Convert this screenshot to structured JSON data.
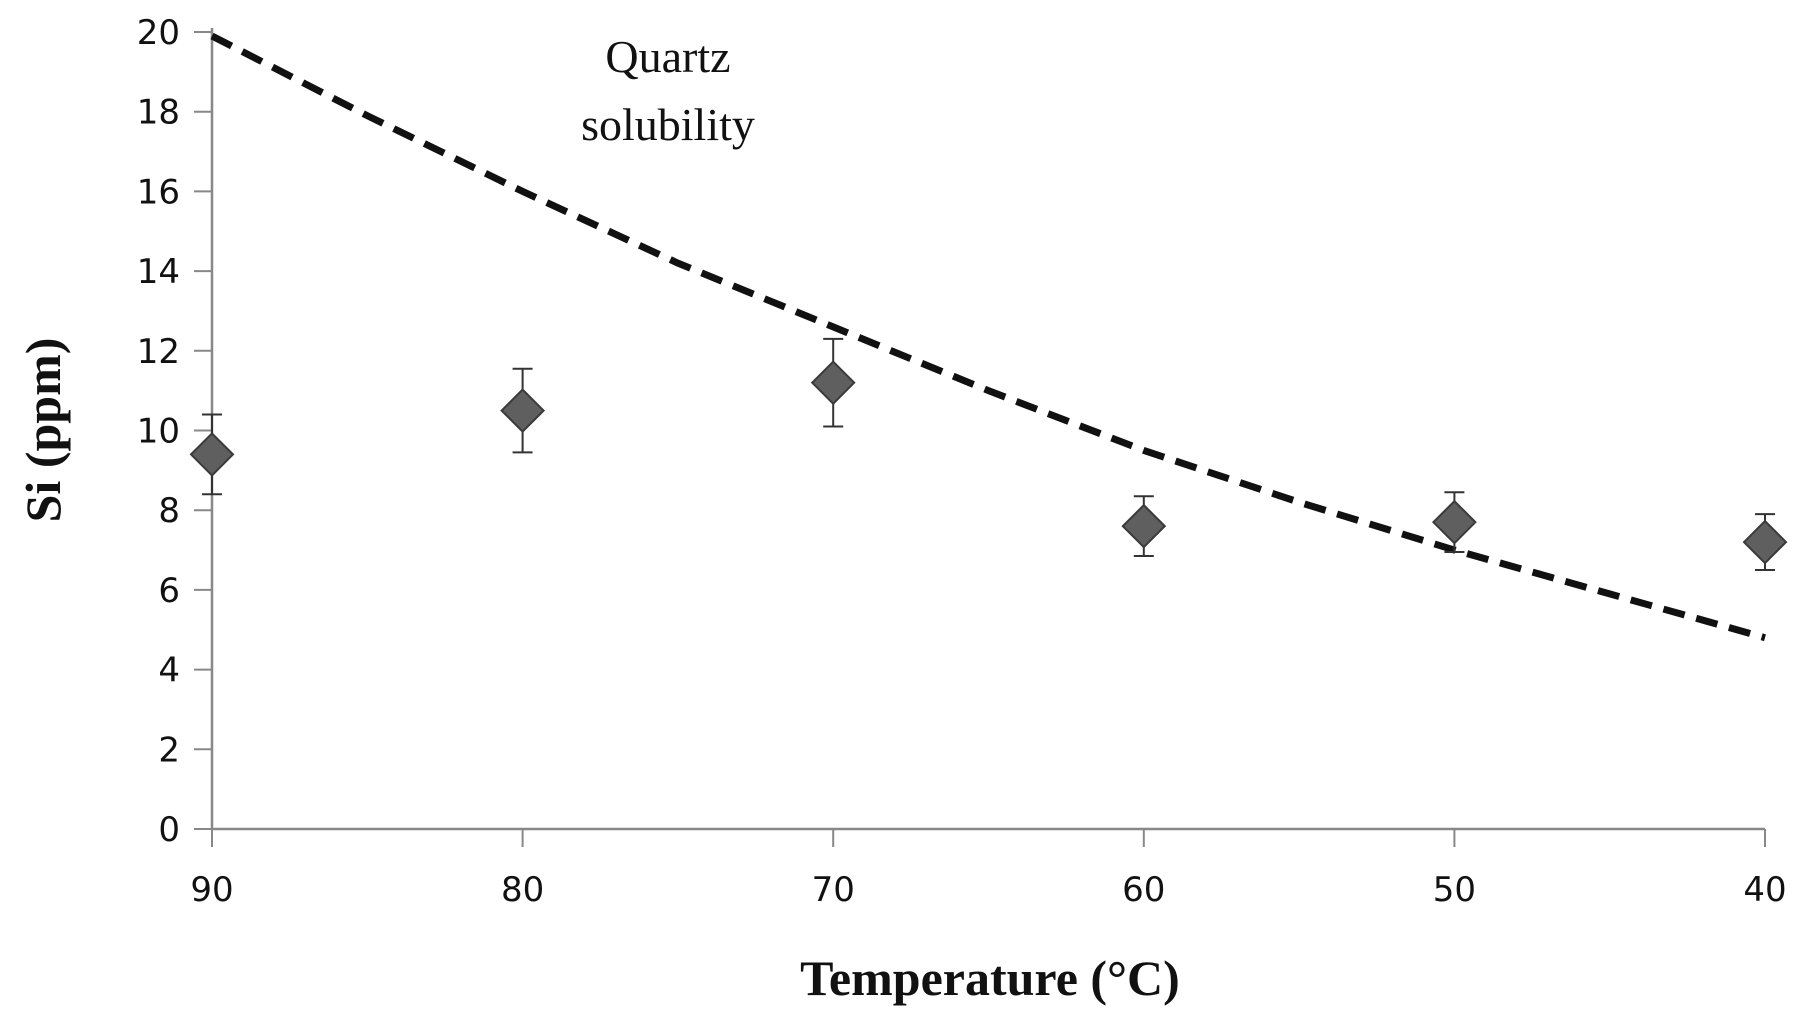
{
  "chart_data": {
    "type": "scatter",
    "xlabel": "Temperature (°C)",
    "ylabel": "Si (ppm)",
    "xlim": [
      90,
      40
    ],
    "ylim": [
      0,
      20
    ],
    "x_reversed": true,
    "xticks": [
      90,
      80,
      70,
      60,
      50,
      40
    ],
    "yticks": [
      0,
      2,
      4,
      6,
      8,
      10,
      12,
      14,
      16,
      18,
      20
    ],
    "grid": false,
    "annotation": [
      "Quartz",
      "solubility"
    ],
    "colors": {
      "marker": "#5f5f5f",
      "marker_edge": "#3a3a3a",
      "line": "#111111",
      "axis": "#888888"
    },
    "series": [
      {
        "type": "scatter",
        "marker": "diamond",
        "points": [
          {
            "x": 90,
            "y": 9.4,
            "err": 1.0
          },
          {
            "x": 80,
            "y": 10.5,
            "err": 1.05
          },
          {
            "x": 70,
            "y": 11.2,
            "err": 1.1
          },
          {
            "x": 60,
            "y": 7.6,
            "err": 0.75
          },
          {
            "x": 50,
            "y": 7.7,
            "err": 0.75
          },
          {
            "x": 40,
            "y": 7.2,
            "err": 0.7
          }
        ]
      },
      {
        "type": "line",
        "style": "dashed",
        "x": [
          90,
          85,
          80,
          75,
          70,
          65,
          60,
          55,
          50,
          45,
          40
        ],
        "y": [
          19.9,
          17.9,
          16.0,
          14.2,
          12.6,
          11.0,
          9.5,
          8.2,
          7.0,
          5.9,
          4.8
        ]
      }
    ]
  }
}
